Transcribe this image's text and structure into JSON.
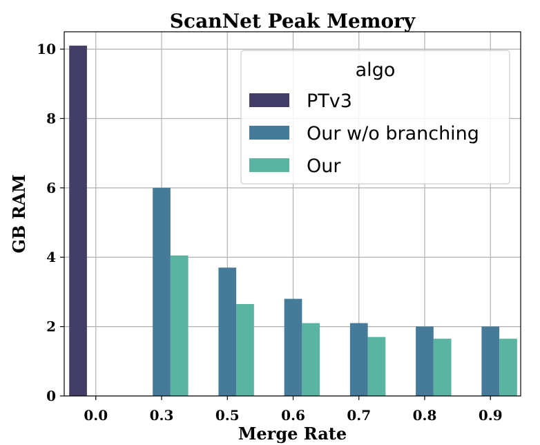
{
  "chart_data": {
    "type": "bar",
    "title": "ScanNet Peak Memory",
    "xlabel": "Merge Rate",
    "ylabel": "GB RAM",
    "categories": [
      "0.0",
      "0.3",
      "0.5",
      "0.6",
      "0.7",
      "0.8",
      "0.9"
    ],
    "series": [
      {
        "name": "PTv3",
        "color": "#433e66",
        "values": [
          10.1,
          null,
          null,
          null,
          null,
          null,
          null
        ]
      },
      {
        "name": "Our w/o branching",
        "color": "#457a98",
        "values": [
          null,
          6.0,
          3.7,
          2.8,
          2.1,
          2.0,
          2.0
        ]
      },
      {
        "name": "Our",
        "color": "#5ab4a2",
        "values": [
          null,
          4.05,
          2.65,
          2.1,
          1.7,
          1.65,
          1.65
        ]
      }
    ],
    "ylim": [
      0,
      10.5
    ],
    "yticks": [
      0,
      2,
      4,
      6,
      8,
      10
    ],
    "grid": true,
    "legend": {
      "title": "algo",
      "placement": "top-right"
    }
  }
}
